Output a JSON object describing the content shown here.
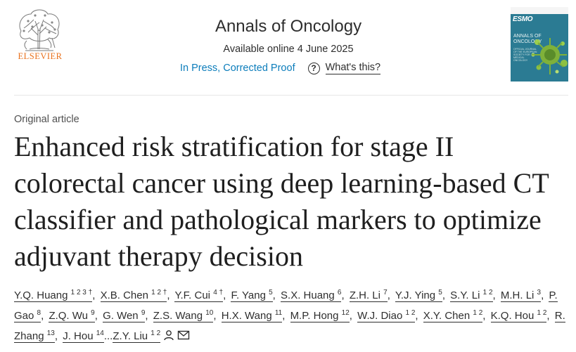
{
  "publisher": {
    "name": "ELSEVIER"
  },
  "journal": {
    "title": "Annals of Oncology",
    "available": "Available online 4 June 2025"
  },
  "status": {
    "stage": "In Press, Corrected Proof",
    "help_label": "What's this?",
    "help_glyph": "?"
  },
  "cover": {
    "brand": "ESMO",
    "line1": "ANNALS OF",
    "line2": "ONCOLOGY",
    "subtitle": "OFFICIAL JOURNAL OF THE EUROPEAN SOCIETY FOR MEDICAL ONCOLOGY"
  },
  "article": {
    "type": "Original article",
    "title": "Enhanced risk stratification for stage II colorectal cancer using deep learning-based CT classifier and pathological markers to optimize adjuvant therapy decision"
  },
  "authors": [
    {
      "name": "Y.Q. Huang",
      "sup": "1 2 3 †"
    },
    {
      "name": "X.B. Chen",
      "sup": "1 2 †"
    },
    {
      "name": "Y.F. Cui",
      "sup": "4 †"
    },
    {
      "name": "F. Yang",
      "sup": "5"
    },
    {
      "name": "S.X. Huang",
      "sup": "6"
    },
    {
      "name": "Z.H. Li",
      "sup": "7"
    },
    {
      "name": "Y.J. Ying",
      "sup": "5"
    },
    {
      "name": "S.Y. Li",
      "sup": "1 2"
    },
    {
      "name": "M.H. Li",
      "sup": "3"
    },
    {
      "name": "P. Gao",
      "sup": "8"
    },
    {
      "name": "Z.Q. Wu",
      "sup": "9"
    },
    {
      "name": "G. Wen",
      "sup": "9"
    },
    {
      "name": "Z.S. Wang",
      "sup": "10"
    },
    {
      "name": "H.X. Wang",
      "sup": "11"
    },
    {
      "name": "M.P. Hong",
      "sup": "12"
    },
    {
      "name": "W.J. Diao",
      "sup": "1 2"
    },
    {
      "name": "X.Y. Chen",
      "sup": "1 2"
    },
    {
      "name": "K.Q. Hou",
      "sup": "1 2"
    },
    {
      "name": "R. Zhang",
      "sup": "13"
    },
    {
      "name": "J. Hou",
      "sup": "14"
    },
    {
      "name": "Z.Y. Liu",
      "sup": "1 2"
    }
  ],
  "author_separator": ",",
  "author_ellipsis": "...",
  "icons": {
    "corresponding": "person-icon",
    "email": "envelope-icon"
  },
  "colors": {
    "publisher_orange": "#e9711c",
    "link_blue": "#0c7dbb",
    "cover_teal": "#2b7b93"
  }
}
